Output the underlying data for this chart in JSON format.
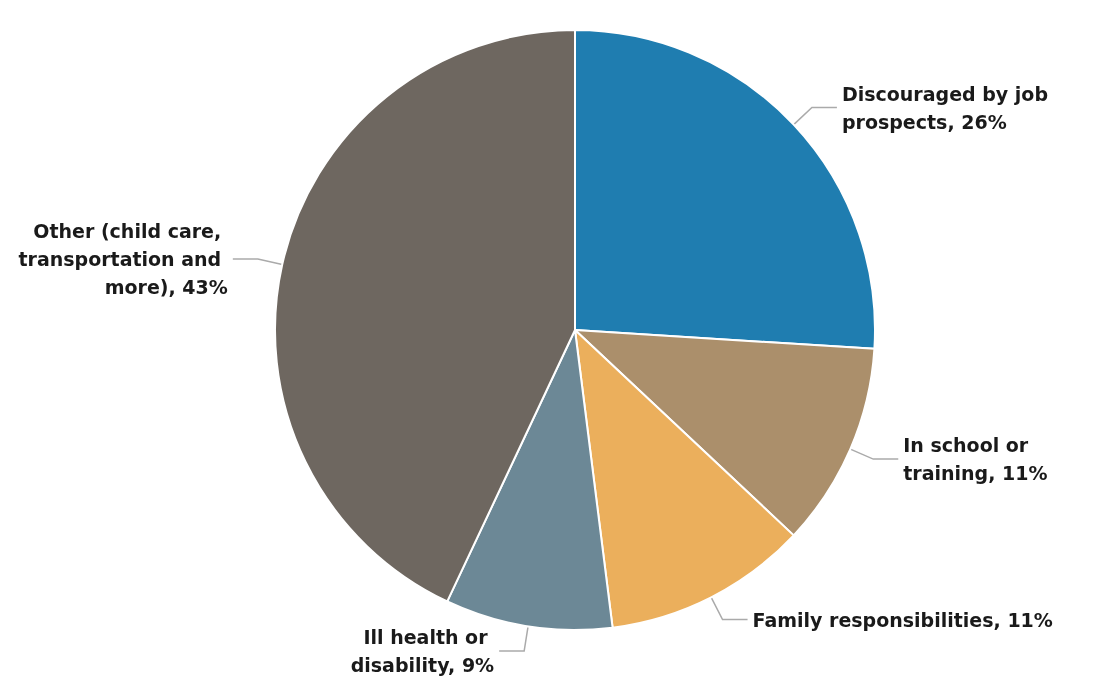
{
  "chart_data": {
    "type": "pie",
    "categories": [
      "Discouraged by job prospects",
      "In school or training",
      "Family responsibilities",
      "Ill health or disability",
      "Other (child care, transportation and more)"
    ],
    "values": [
      26,
      11,
      11,
      9,
      43
    ],
    "value_labels": [
      "26%",
      "11%",
      "11%",
      "9%",
      "43%"
    ],
    "colors": [
      "#1f7db0",
      "#ab8f6b",
      "#ebaf5c",
      "#6c8896",
      "#6e6760"
    ]
  }
}
